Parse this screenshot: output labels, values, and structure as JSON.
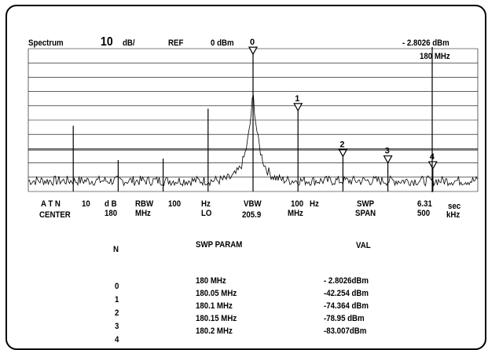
{
  "header": {
    "mode": "Spectrum",
    "scale_value": "10",
    "scale_unit": "dB/",
    "ref_label": "REF",
    "ref_value": "0 dBm",
    "marker_level": "- 2.8026 dBm",
    "marker_freq": "180   MHz"
  },
  "markers": [
    "0",
    "1",
    "2",
    "3",
    "4"
  ],
  "footer": {
    "atn_label": "A T N",
    "atn_value": "10",
    "atn_unit": "d B",
    "center_label": "CENTER",
    "center_value": "180",
    "center_unit": "MHz",
    "rbw_label": "RBW",
    "rbw_value": "100",
    "rbw_unit": "Hz",
    "lo_label": "LO",
    "vbw_label": "VBW",
    "vbw_value": "205.9",
    "vbw_num": "100",
    "vbw_unit": "Hz",
    "vbw_unit2": "MHz",
    "swp_label": "SWP",
    "span_label": "SPAN",
    "swp_value": "6.31",
    "span_value": "500",
    "swp_unit": "sec",
    "span_unit": "kHz"
  },
  "table": {
    "col_n": "N",
    "col_param": "SWP    PARAM",
    "col_val": "VAL",
    "n_values": [
      "0",
      "1",
      "2",
      "3",
      "4"
    ],
    "param_values": [
      "180    MHz",
      "180.05 MHz",
      "180.1   MHz",
      "180.15 MHz",
      "180.2   MHz"
    ],
    "val_values": [
      "-  2.8026dBm",
      "-42.254  dBm",
      "-74.364  dBm",
      "-78.95   dBm",
      "-83.007dBm"
    ]
  },
  "chart_data": {
    "type": "line",
    "title": "",
    "ylim": [
      -100,
      0
    ],
    "y_unit": "dBm",
    "x_range_MHz": [
      179.75,
      180.25
    ],
    "markers": [
      {
        "id": "0",
        "x": 180.0,
        "y": -2.8026
      },
      {
        "id": "1",
        "x": 180.05,
        "y": -42.254
      },
      {
        "id": "2",
        "x": 180.1,
        "y": -74.364
      },
      {
        "id": "3",
        "x": 180.15,
        "y": -78.95
      },
      {
        "id": "4",
        "x": 180.2,
        "y": -83.007
      }
    ],
    "spurs_MHz": [
      179.8,
      179.85,
      179.9,
      179.95,
      180.0,
      180.05,
      180.1,
      180.15,
      180.2
    ],
    "grid": true
  }
}
